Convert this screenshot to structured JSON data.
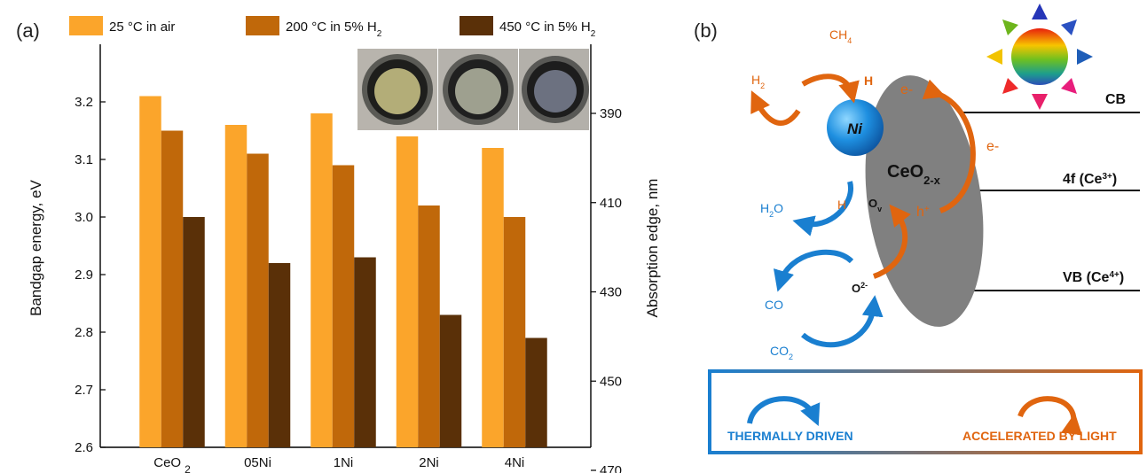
{
  "panels": {
    "a_label": "(a)",
    "b_label": "(b)"
  },
  "chart_data": {
    "type": "bar",
    "categories": [
      "CeO 2",
      "05Ni",
      "1Ni",
      "2Ni",
      "4Ni"
    ],
    "category_display": [
      {
        "main": "CeO",
        "sub": "2"
      },
      {
        "main": "05Ni",
        "sub": ""
      },
      {
        "main": "1Ni",
        "sub": ""
      },
      {
        "main": "2Ni",
        "sub": ""
      },
      {
        "main": "4Ni",
        "sub": ""
      }
    ],
    "series": [
      {
        "name": "25 °C in air",
        "legend_main": "25 °C in air",
        "legend_sub": "",
        "color": "#FBA52B",
        "values": [
          3.21,
          3.16,
          3.18,
          3.14,
          3.12
        ]
      },
      {
        "name": "200 °C in 5% H2",
        "legend_main": "200 °C in 5% H",
        "legend_sub": "2",
        "color": "#C0680A",
        "values": [
          3.15,
          3.11,
          3.09,
          3.02,
          3.0
        ]
      },
      {
        "name": "450 °C in 5% H2",
        "legend_main": "450 °C in 5% H",
        "legend_sub": "2",
        "color": "#5A3008",
        "values": [
          3.0,
          2.92,
          2.93,
          2.83,
          2.79
        ]
      }
    ],
    "ylabel": "Bandgap energy, eV",
    "ylim": [
      2.6,
      3.3
    ],
    "yticks": [
      "2.6",
      "2.7",
      "2.8",
      "2.9",
      "3.0",
      "3.1",
      "3.2"
    ],
    "y2label": "Absorption edge, nm",
    "y2ticks": [
      {
        "label": "390",
        "at_ev": 3.18
      },
      {
        "label": "410",
        "at_ev": 3.025
      },
      {
        "label": "430",
        "at_ev": 2.87
      },
      {
        "label": "450",
        "at_ev": 2.715
      },
      {
        "label": "470",
        "at_ev": 2.56
      }
    ],
    "grid": false,
    "legend_position": "top"
  },
  "diagram": {
    "ni": "Ni",
    "ceo2_main": "CeO",
    "ceo2_sub": "2-x",
    "cb": "CB",
    "f4_main": "4f (Ce",
    "f4_sup": "3+",
    "f4_end": ")",
    "vb_main": "VB (Ce",
    "vb_sup": "4+",
    "vb_end": ")",
    "ch4_main": "CH",
    "ch4_sub": "4",
    "h2_main": "H",
    "h2_sub": "2",
    "h_top": "H",
    "h_left": "H",
    "e_top": "e-",
    "e_right": "e-",
    "hplus_main": "h",
    "hplus_sup": "+",
    "h2o_main": "H",
    "h2o_sub": "2",
    "h2o_end": "O",
    "ov_main": "O",
    "ov_sub": "v",
    "o2_main": "O",
    "o2_sup": "2-",
    "co": "CO",
    "co2_main": "CO",
    "co2_sub": "2",
    "legend_thermal": "THERMALLY DRIVEN",
    "legend_light": "ACCELERATED BY LIGHT",
    "colors": {
      "thermal": "#1A7FD0",
      "light": "#E0650F",
      "ellipse": "#808080"
    }
  }
}
